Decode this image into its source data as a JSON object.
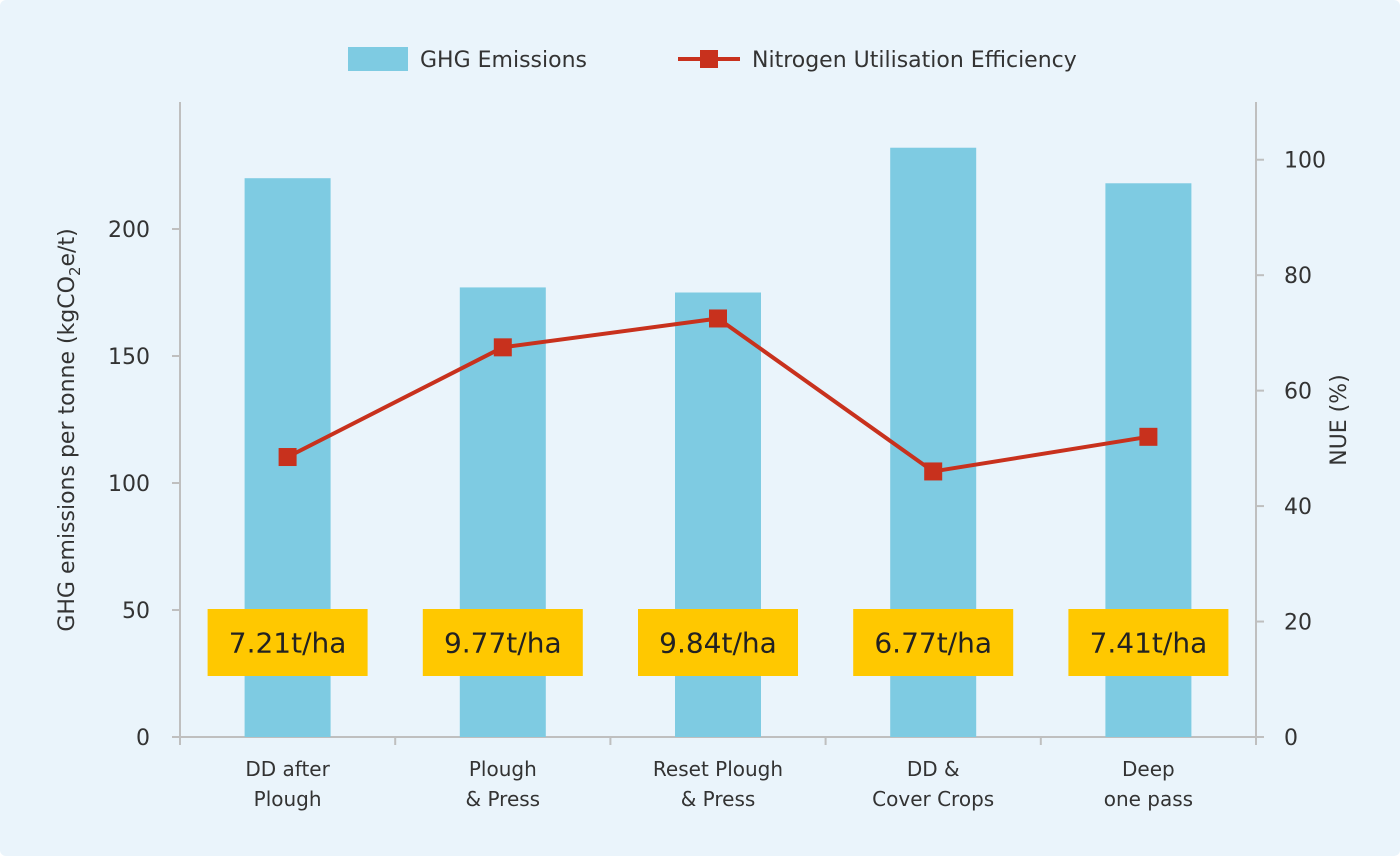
{
  "chart_data": {
    "type": "bar",
    "categories": [
      [
        "DD after",
        "Plough"
      ],
      [
        "Plough",
        "& Press"
      ],
      [
        "Reset Plough",
        "& Press"
      ],
      [
        "DD &",
        "Cover Crops"
      ],
      [
        "Deep",
        "one pass"
      ]
    ],
    "series": [
      {
        "name": "GHG Emissions",
        "type": "bar",
        "axis": "left",
        "color": "#7ecbe2",
        "values": [
          220,
          177,
          175,
          232,
          218
        ]
      },
      {
        "name": "Nitrogen Utilisation Efficiency",
        "type": "line",
        "axis": "right",
        "color": "#c8311d",
        "marker": "square",
        "values": [
          48.5,
          67.5,
          72.5,
          46,
          52
        ]
      }
    ],
    "annotations": [
      "7.21t/ha",
      "9.77t/ha",
      "9.84t/ha",
      "6.77t/ha",
      "7.41t/ha"
    ],
    "annotation_color": "#ffc800",
    "ylabel_parts": {
      "before": "GHG emissions per tonne (kgCO",
      "sub": "2",
      "after": "e/t)"
    },
    "y2label": "NUE (%)",
    "ylim": [
      0,
      250
    ],
    "y2lim": [
      0,
      110
    ],
    "yticks": [
      0,
      50,
      100,
      150,
      200
    ],
    "y2ticks": [
      0,
      20,
      40,
      60,
      80,
      100
    ],
    "legend_position": "top",
    "grid": false,
    "background_color": "#eaf4fb"
  }
}
